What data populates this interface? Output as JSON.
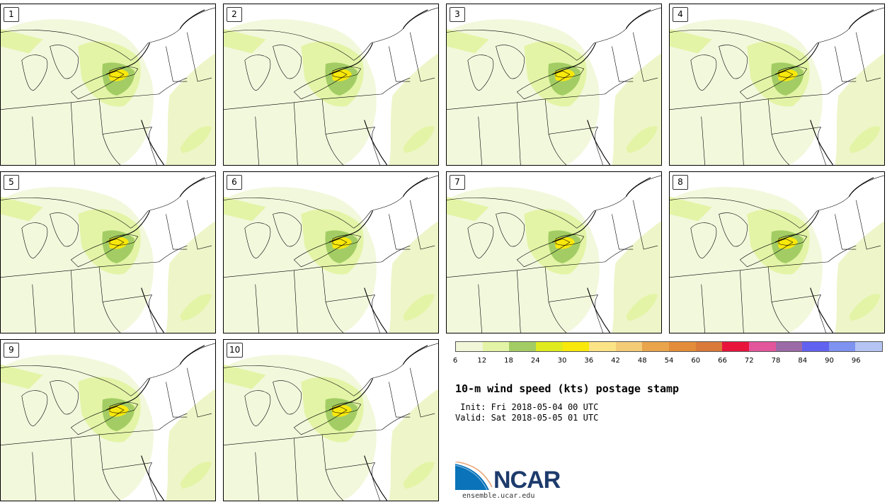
{
  "panels": [
    "1",
    "2",
    "3",
    "4",
    "5",
    "6",
    "7",
    "8",
    "9",
    "10"
  ],
  "colorbar": {
    "ticks": [
      "6",
      "12",
      "18",
      "24",
      "30",
      "36",
      "42",
      "48",
      "54",
      "60",
      "66",
      "72",
      "78",
      "84",
      "90",
      "96"
    ],
    "colors": [
      "#f1f7d8",
      "#e3f4a6",
      "#a3cd64",
      "#dfea1f",
      "#f8e80c",
      "#fbe486",
      "#f4cb77",
      "#e9a44c",
      "#e38c3a",
      "#d9793a",
      "#e8143c",
      "#e3569c",
      "#9c6aa6",
      "#6262f1",
      "#7e92f0",
      "#b5c4f3"
    ]
  },
  "title": "10-m wind speed (kts) postage stamp",
  "init_line": " Init: Fri 2018-05-04 00 UTC",
  "valid_line": "Valid: Sat 2018-05-05 01 UTC",
  "logo_text": "NCAR",
  "url": "ensemble.ucar.edu"
}
